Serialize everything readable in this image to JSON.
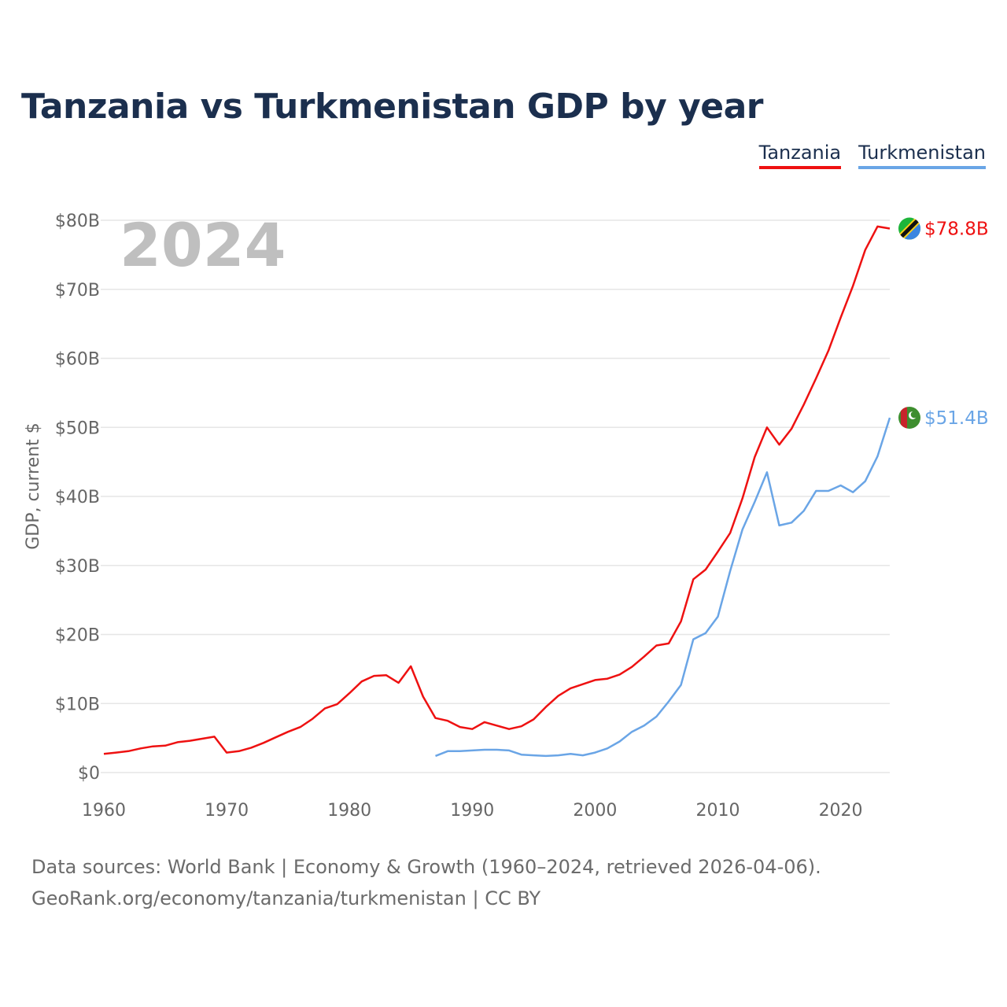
{
  "title": "Tanzania vs Turkmenistan GDP by year",
  "legend": [
    {
      "label": "Tanzania",
      "color": "#ee1111"
    },
    {
      "label": "Turkmenistan",
      "color": "#6aa5e6"
    }
  ],
  "year_label": "2024",
  "footer": {
    "line1": "Data sources: World Bank | Economy & Growth (1960–2024, retrieved 2026-04-06).",
    "line2": "GeoRank.org/economy/tanzania/turkmenistan | CC BY"
  },
  "chart_data": {
    "type": "line",
    "title": "Tanzania vs Turkmenistan GDP by year",
    "xlabel": "",
    "ylabel": "GDP, current $",
    "xlim": [
      1960,
      2024
    ],
    "ylim": [
      0,
      80
    ],
    "x_ticks": [
      1960,
      1970,
      1980,
      1990,
      2000,
      2010,
      2020
    ],
    "x_tick_labels": [
      "1960",
      "1970",
      "1980",
      "1990",
      "2000",
      "2010",
      "2020"
    ],
    "y_ticks": [
      0,
      10,
      20,
      30,
      40,
      50,
      60,
      70,
      80
    ],
    "y_tick_labels": [
      "$0",
      "$10B",
      "$20B",
      "$30B",
      "$40B",
      "$50B",
      "$60B",
      "$70B",
      "$80B"
    ],
    "series": [
      {
        "name": "Tanzania",
        "color": "#ee1111",
        "end_label": "$78.8B",
        "x": [
          1960,
          1961,
          1962,
          1963,
          1964,
          1965,
          1966,
          1967,
          1968,
          1969,
          1970,
          1971,
          1972,
          1973,
          1974,
          1975,
          1976,
          1977,
          1978,
          1979,
          1980,
          1981,
          1982,
          1983,
          1984,
          1985,
          1986,
          1987,
          1988,
          1989,
          1990,
          1991,
          1992,
          1993,
          1994,
          1995,
          1996,
          1997,
          1998,
          1999,
          2000,
          2001,
          2002,
          2003,
          2004,
          2005,
          2006,
          2007,
          2008,
          2009,
          2010,
          2011,
          2012,
          2013,
          2014,
          2015,
          2016,
          2017,
          2018,
          2019,
          2020,
          2021,
          2022,
          2023,
          2024
        ],
        "values": [
          2.7,
          2.9,
          3.1,
          3.5,
          3.8,
          3.9,
          4.4,
          4.6,
          4.9,
          5.2,
          2.9,
          3.1,
          3.6,
          4.3,
          5.1,
          5.9,
          6.6,
          7.8,
          9.3,
          9.9,
          11.5,
          13.2,
          14.0,
          14.1,
          13.0,
          15.4,
          11.0,
          7.9,
          7.5,
          6.6,
          6.3,
          7.3,
          6.8,
          6.3,
          6.7,
          7.7,
          9.5,
          11.1,
          12.2,
          12.8,
          13.4,
          13.6,
          14.2,
          15.3,
          16.8,
          18.4,
          18.7,
          21.9,
          28.0,
          29.4,
          32.0,
          34.7,
          39.7,
          45.7,
          50.0,
          47.5,
          49.8,
          53.3,
          57.1,
          61.1,
          65.9,
          70.5,
          75.7,
          79.1,
          78.8
        ]
      },
      {
        "name": "Turkmenistan",
        "color": "#6aa5e6",
        "end_label": "$51.4B",
        "x": [
          1987,
          1988,
          1989,
          1990,
          1991,
          1992,
          1993,
          1994,
          1995,
          1996,
          1997,
          1998,
          1999,
          2000,
          2001,
          2002,
          2003,
          2004,
          2005,
          2006,
          2007,
          2008,
          2009,
          2010,
          2011,
          2012,
          2013,
          2014,
          2015,
          2016,
          2017,
          2018,
          2019,
          2020,
          2021,
          2022,
          2023,
          2024
        ],
        "values": [
          2.4,
          3.1,
          3.1,
          3.2,
          3.3,
          3.3,
          3.2,
          2.6,
          2.5,
          2.4,
          2.5,
          2.7,
          2.5,
          2.9,
          3.5,
          4.5,
          5.9,
          6.8,
          8.1,
          10.3,
          12.7,
          19.3,
          20.2,
          22.6,
          29.2,
          35.2,
          39.2,
          43.5,
          35.8,
          36.2,
          37.9,
          40.8,
          40.8,
          41.6,
          40.6,
          42.2,
          45.8,
          51.4
        ]
      }
    ]
  }
}
